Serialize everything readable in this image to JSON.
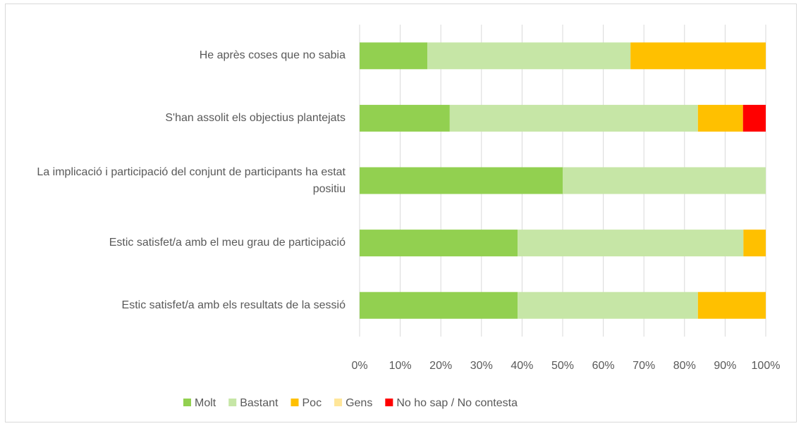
{
  "chart_data": {
    "type": "stacked-barh",
    "categories": [
      "He après coses que no sabia",
      "S'han assolit els objectius plantejats",
      "La implicació i participació del conjunt de participants ha estat positiu",
      "Estic satisfet/a amb el meu grau de participació",
      "Estic satisfet/a amb els resultats de la sessió"
    ],
    "series": [
      {
        "name": "Molt",
        "color": "#92d050",
        "values": [
          16.7,
          22.2,
          50,
          38.9,
          38.9
        ]
      },
      {
        "name": "Bastant",
        "color": "#c6e6a6",
        "values": [
          50,
          61.1,
          50,
          55.6,
          44.4
        ]
      },
      {
        "name": "Poc",
        "color": "#ffc000",
        "values": [
          33.3,
          11.1,
          0,
          5.5,
          16.7
        ]
      },
      {
        "name": "Gens",
        "color": "#ffe699",
        "values": [
          0,
          0,
          0,
          0,
          0
        ]
      },
      {
        "name": "No ho sap / No contesta",
        "color": "#ff0000",
        "values": [
          0,
          5.6,
          0,
          0,
          0
        ]
      }
    ],
    "xlim": [
      0,
      100
    ],
    "xticks": [
      {
        "value": 0,
        "label": "0%"
      },
      {
        "value": 10,
        "label": "10%"
      },
      {
        "value": 20,
        "label": "20%"
      },
      {
        "value": 30,
        "label": "30%"
      },
      {
        "value": 40,
        "label": "40%"
      },
      {
        "value": 50,
        "label": "50%"
      },
      {
        "value": 60,
        "label": "60%"
      },
      {
        "value": 70,
        "label": "70%"
      },
      {
        "value": 80,
        "label": "80%"
      },
      {
        "value": 90,
        "label": "90%"
      },
      {
        "value": 100,
        "label": "100%"
      }
    ],
    "grid": true,
    "legend": "bottom"
  }
}
